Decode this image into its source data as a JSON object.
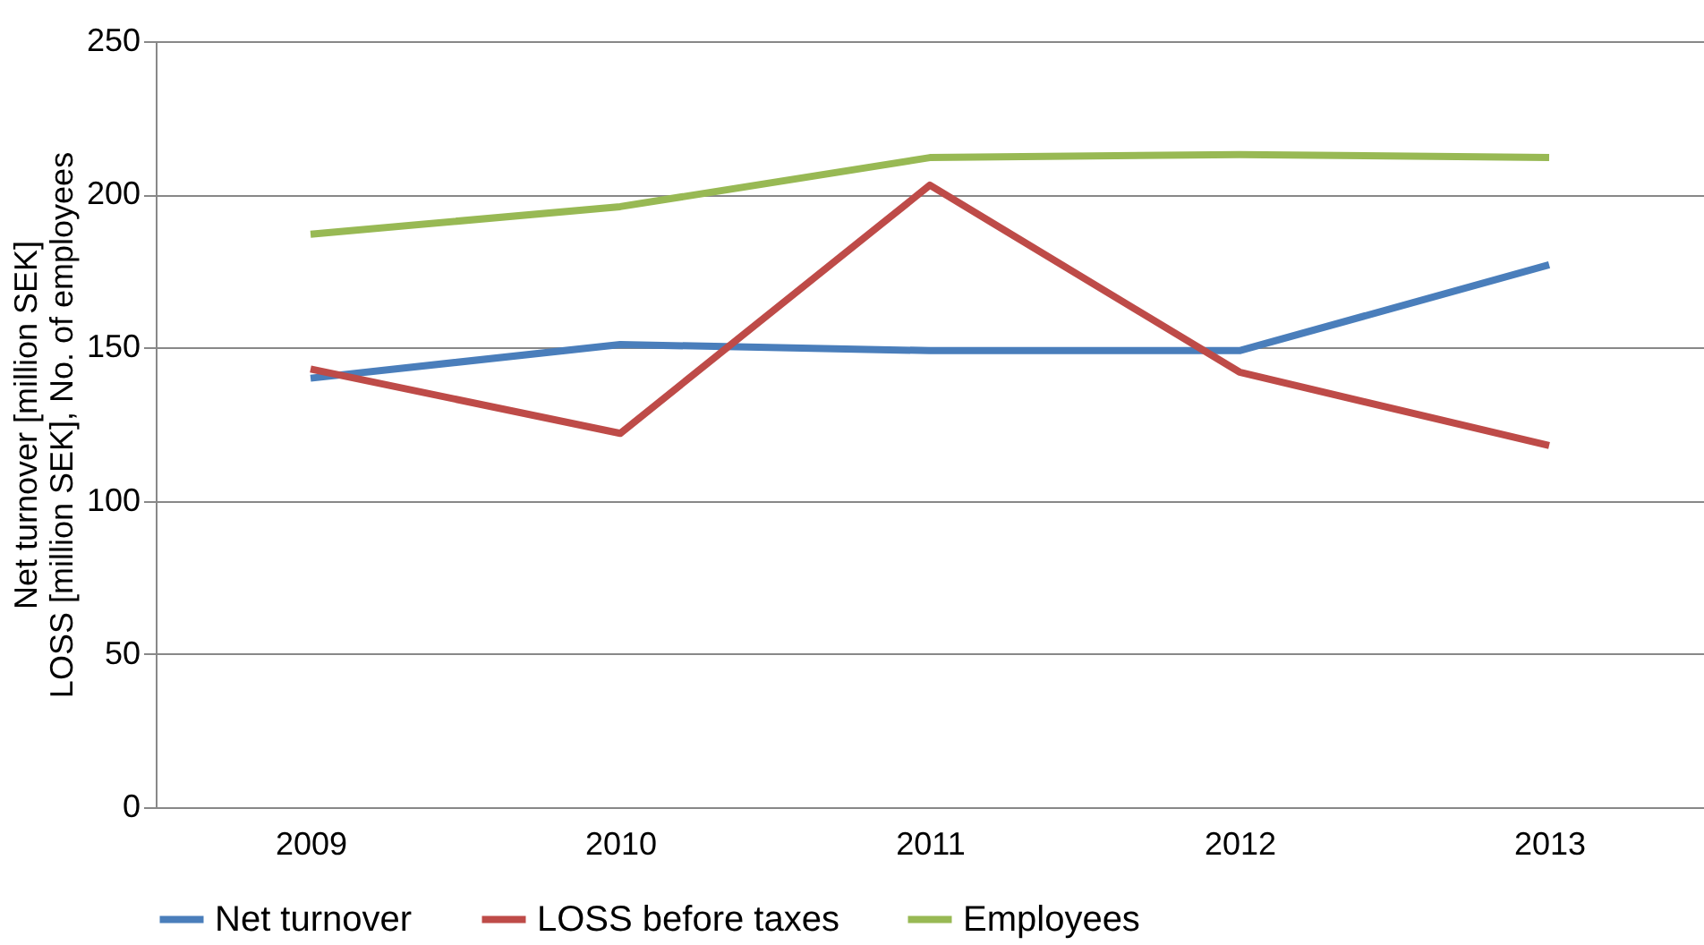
{
  "chart_data": {
    "type": "line",
    "ylabel": "Net turnover [million SEK]\nLOSS [million SEK], No. of employees",
    "categories": [
      "2009",
      "2010",
      "2011",
      "2012",
      "2013"
    ],
    "series": [
      {
        "name": "Net turnover",
        "color": "#4a7ebb",
        "values": [
          140,
          151,
          149,
          149,
          177
        ]
      },
      {
        "name": "LOSS before taxes",
        "color": "#be4b48",
        "values": [
          143,
          122,
          203,
          142,
          118
        ]
      },
      {
        "name": "Employees",
        "color": "#98b954",
        "values": [
          187,
          196,
          212,
          213,
          212
        ]
      }
    ],
    "ylim": [
      0,
      250
    ],
    "yticks": [
      0,
      50,
      100,
      150,
      200,
      250
    ],
    "grid": "y",
    "legend": "bottom",
    "marker": "none",
    "line_style": "solid"
  }
}
